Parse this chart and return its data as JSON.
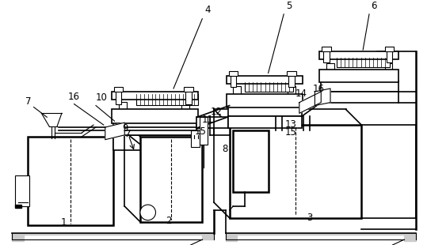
{
  "bg_color": "#ffffff",
  "line_color": "#000000",
  "fig_width": 5.39,
  "fig_height": 3.1,
  "dpi": 100
}
